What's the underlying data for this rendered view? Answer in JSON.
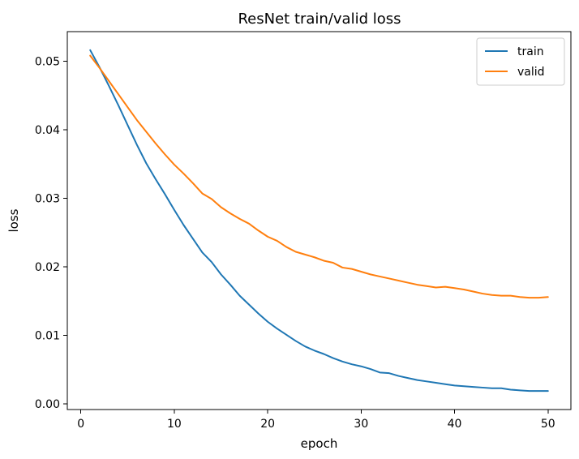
{
  "chart_data": {
    "type": "line",
    "title": "ResNet train/valid loss",
    "xlabel": "epoch",
    "ylabel": "loss",
    "xlim": [
      -1.45,
      52.45
    ],
    "ylim": [
      -0.0008,
      0.0543
    ],
    "xticks": [
      0,
      10,
      20,
      30,
      40,
      50
    ],
    "xtick_labels": [
      "0",
      "10",
      "20",
      "30",
      "40",
      "50"
    ],
    "yticks": [
      0.0,
      0.01,
      0.02,
      0.03,
      0.04,
      0.05
    ],
    "ytick_labels": [
      "0.00",
      "0.01",
      "0.02",
      "0.03",
      "0.04",
      "0.05"
    ],
    "grid": false,
    "legend_position": "top-right",
    "x": [
      1,
      2,
      3,
      4,
      5,
      6,
      7,
      8,
      9,
      10,
      11,
      12,
      13,
      14,
      15,
      16,
      17,
      18,
      19,
      20,
      21,
      22,
      23,
      24,
      25,
      26,
      27,
      28,
      29,
      30,
      31,
      32,
      33,
      34,
      35,
      36,
      37,
      38,
      39,
      40,
      41,
      42,
      43,
      44,
      45,
      46,
      47,
      48,
      49,
      50
    ],
    "series": [
      {
        "name": "train",
        "color": "#1f77b4",
        "values": [
          0.0516,
          0.0491,
          0.0464,
          0.0436,
          0.0407,
          0.0378,
          0.0351,
          0.0328,
          0.0306,
          0.0283,
          0.0261,
          0.0241,
          0.0221,
          0.0207,
          0.0189,
          0.0174,
          0.0158,
          0.0145,
          0.0132,
          0.012,
          0.011,
          0.0101,
          0.0092,
          0.0084,
          0.0078,
          0.0073,
          0.0067,
          0.0062,
          0.0058,
          0.0055,
          0.0051,
          0.0046,
          0.0045,
          0.0041,
          0.0038,
          0.0035,
          0.0033,
          0.0031,
          0.0029,
          0.0027,
          0.0026,
          0.0025,
          0.0024,
          0.0023,
          0.0023,
          0.0021,
          0.002,
          0.0019,
          0.0019,
          0.0019
        ]
      },
      {
        "name": "valid",
        "color": "#ff7f0e",
        "values": [
          0.0508,
          0.049,
          0.0471,
          0.0452,
          0.0433,
          0.0414,
          0.0397,
          0.038,
          0.0364,
          0.0349,
          0.0336,
          0.0322,
          0.0307,
          0.0299,
          0.0287,
          0.0278,
          0.027,
          0.0263,
          0.0253,
          0.0244,
          0.0238,
          0.0229,
          0.0222,
          0.0218,
          0.0214,
          0.0209,
          0.0206,
          0.0199,
          0.0197,
          0.0193,
          0.0189,
          0.0186,
          0.0183,
          0.018,
          0.0177,
          0.0174,
          0.0172,
          0.017,
          0.0171,
          0.0169,
          0.0167,
          0.0164,
          0.0161,
          0.0159,
          0.0158,
          0.0158,
          0.0156,
          0.0155,
          0.0155,
          0.0156
        ]
      }
    ]
  }
}
